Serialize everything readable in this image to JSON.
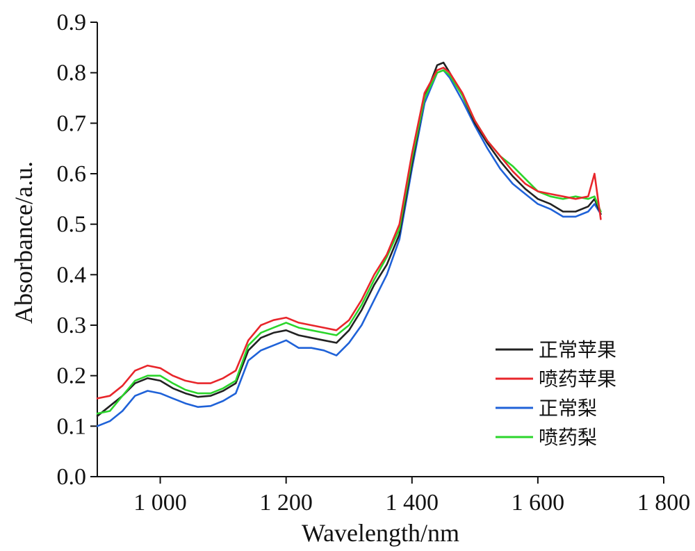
{
  "chart_data": {
    "type": "line",
    "title": "",
    "xlabel": "Wavelength/nm",
    "ylabel": "Absorbance/a.u.",
    "xlim": [
      900,
      1800
    ],
    "ylim": [
      0,
      0.9
    ],
    "x_ticks": [
      1000,
      1200,
      1400,
      1600,
      1800
    ],
    "x_tick_labels": [
      "1 000",
      "1 200",
      "1 400",
      "1 600",
      "1 800"
    ],
    "y_ticks": [
      0.0,
      0.1,
      0.2,
      0.3,
      0.4,
      0.5,
      0.6,
      0.7,
      0.8,
      0.9
    ],
    "y_tick_labels": [
      "0.0",
      "0.1",
      "0.2",
      "0.3",
      "0.4",
      "0.5",
      "0.6",
      "0.7",
      "0.8",
      "0.9"
    ],
    "grid": false,
    "legend_position": "bottom-right",
    "x": [
      900,
      920,
      940,
      960,
      980,
      1000,
      1020,
      1040,
      1060,
      1080,
      1100,
      1120,
      1140,
      1160,
      1180,
      1200,
      1220,
      1240,
      1260,
      1280,
      1300,
      1320,
      1340,
      1360,
      1380,
      1400,
      1420,
      1440,
      1450,
      1460,
      1480,
      1500,
      1520,
      1540,
      1560,
      1580,
      1600,
      1620,
      1640,
      1660,
      1680,
      1690,
      1700
    ],
    "series": [
      {
        "name": "正常苹果",
        "color": "#222222",
        "values": [
          0.12,
          0.14,
          0.16,
          0.185,
          0.195,
          0.19,
          0.175,
          0.165,
          0.158,
          0.16,
          0.17,
          0.185,
          0.25,
          0.275,
          0.285,
          0.29,
          0.28,
          0.275,
          0.27,
          0.265,
          0.29,
          0.33,
          0.38,
          0.42,
          0.48,
          0.62,
          0.75,
          0.815,
          0.82,
          0.8,
          0.755,
          0.7,
          0.66,
          0.625,
          0.595,
          0.57,
          0.55,
          0.54,
          0.525,
          0.525,
          0.535,
          0.55,
          0.52
        ]
      },
      {
        "name": "喷药苹果",
        "color": "#e8262b",
        "values": [
          0.155,
          0.16,
          0.18,
          0.21,
          0.22,
          0.215,
          0.2,
          0.19,
          0.185,
          0.185,
          0.195,
          0.21,
          0.27,
          0.3,
          0.31,
          0.315,
          0.305,
          0.3,
          0.295,
          0.29,
          0.31,
          0.35,
          0.4,
          0.44,
          0.5,
          0.64,
          0.76,
          0.805,
          0.81,
          0.8,
          0.76,
          0.705,
          0.665,
          0.635,
          0.605,
          0.58,
          0.565,
          0.56,
          0.555,
          0.55,
          0.555,
          0.6,
          0.51
        ]
      },
      {
        "name": "正常梨",
        "color": "#1f62d8",
        "values": [
          0.1,
          0.11,
          0.13,
          0.16,
          0.17,
          0.165,
          0.155,
          0.145,
          0.138,
          0.14,
          0.15,
          0.165,
          0.23,
          0.25,
          0.26,
          0.27,
          0.255,
          0.255,
          0.25,
          0.24,
          0.265,
          0.3,
          0.35,
          0.4,
          0.47,
          0.61,
          0.74,
          0.8,
          0.805,
          0.79,
          0.745,
          0.695,
          0.65,
          0.61,
          0.58,
          0.56,
          0.54,
          0.53,
          0.515,
          0.515,
          0.525,
          0.54,
          0.52
        ]
      },
      {
        "name": "喷药梨",
        "color": "#2bd52b",
        "values": [
          0.125,
          0.13,
          0.16,
          0.19,
          0.2,
          0.2,
          0.185,
          0.172,
          0.165,
          0.165,
          0.175,
          0.19,
          0.26,
          0.285,
          0.295,
          0.305,
          0.295,
          0.29,
          0.285,
          0.28,
          0.3,
          0.34,
          0.39,
          0.435,
          0.49,
          0.63,
          0.75,
          0.8,
          0.805,
          0.795,
          0.755,
          0.705,
          0.665,
          0.635,
          0.615,
          0.59,
          0.565,
          0.555,
          0.55,
          0.555,
          0.55,
          0.555,
          0.525
        ]
      }
    ]
  }
}
